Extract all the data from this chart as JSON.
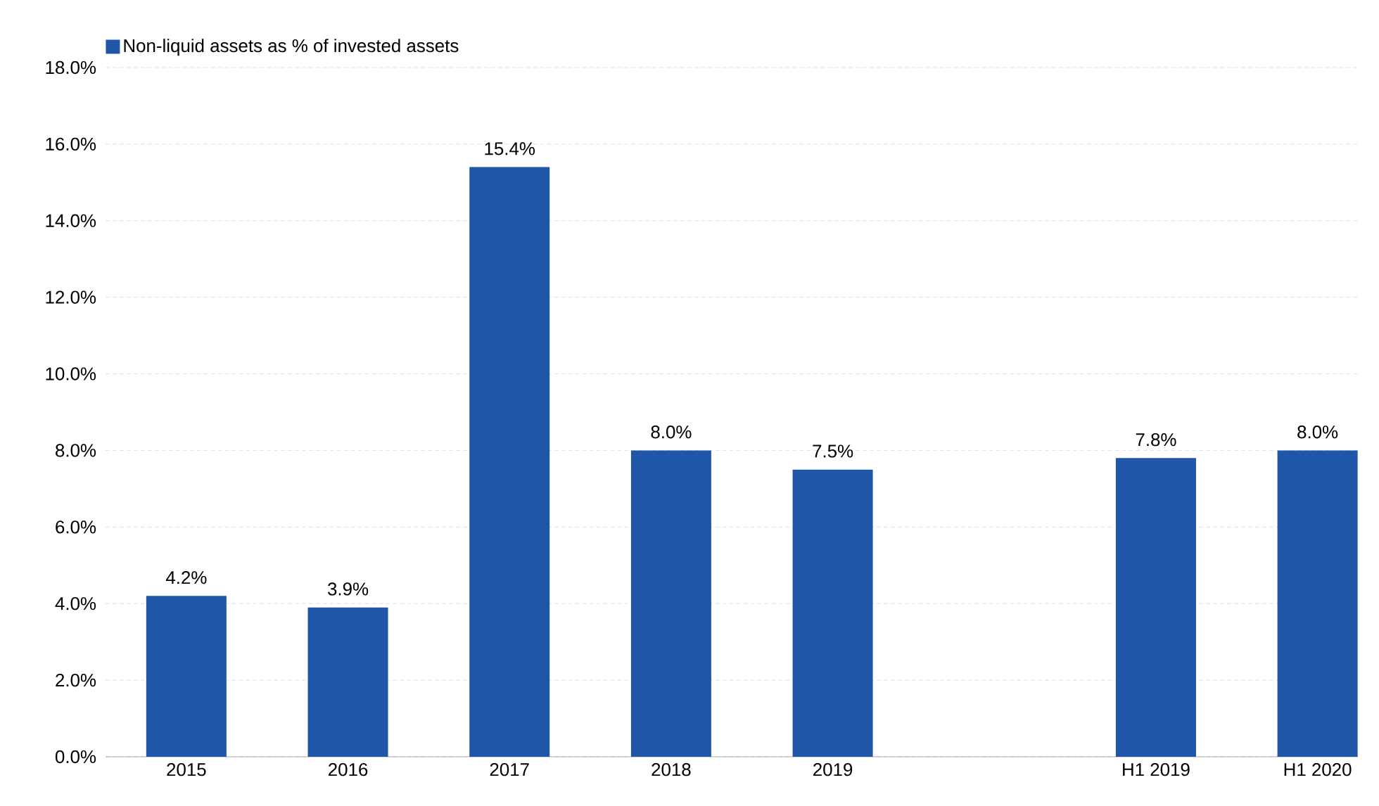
{
  "chart_data": {
    "type": "bar",
    "categories": [
      "2015",
      "2016",
      "2017",
      "2018",
      "2019",
      null,
      "H1 2019",
      "H1 2020"
    ],
    "series": [
      {
        "name": "Non-liquid assets as % of invested assets",
        "color": "#1f56a7",
        "values": [
          4.2,
          3.9,
          15.4,
          8.0,
          7.5,
          null,
          7.8,
          8.0
        ],
        "value_labels": [
          "4.2%",
          "3.9%",
          "15.4%",
          "8.0%",
          "7.5%",
          null,
          "7.8%",
          "8.0%"
        ]
      }
    ],
    "ylim": [
      0,
      18
    ],
    "yticks": [
      {
        "value": 0,
        "label": "0.0%"
      },
      {
        "value": 2,
        "label": "2.0%"
      },
      {
        "value": 4,
        "label": "4.0%"
      },
      {
        "value": 6,
        "label": "6.0%"
      },
      {
        "value": 8,
        "label": "8.0%"
      },
      {
        "value": 10,
        "label": "10.0%"
      },
      {
        "value": 12,
        "label": "12.0%"
      },
      {
        "value": 14,
        "label": "14.0%"
      },
      {
        "value": 16,
        "label": "16.0%"
      },
      {
        "value": 18,
        "label": "18.0%"
      }
    ],
    "grid": "y",
    "legend": "top left"
  }
}
